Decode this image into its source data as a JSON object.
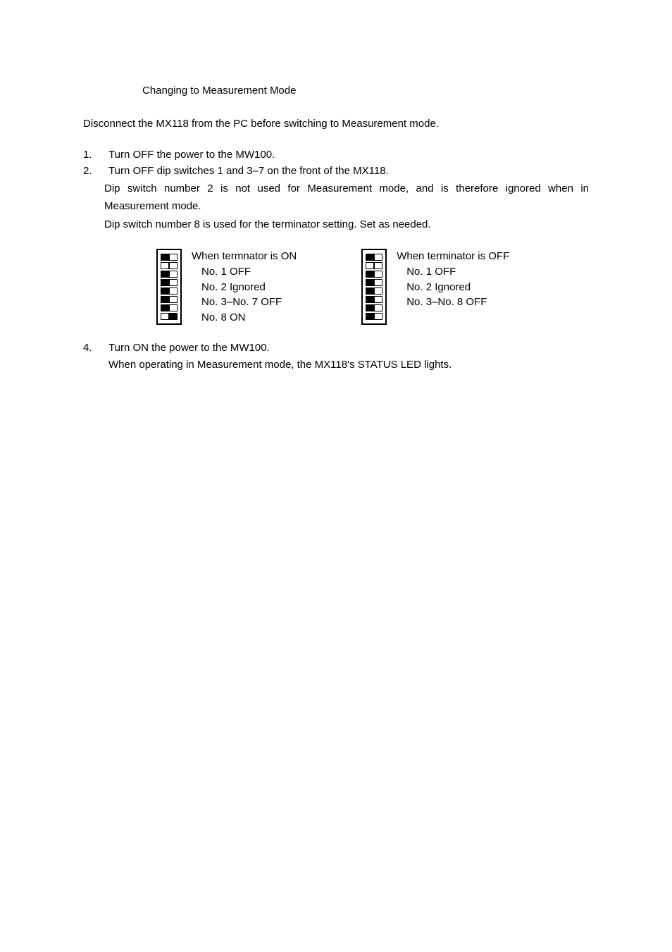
{
  "heading": "Changing to Measurement Mode",
  "intro": "Disconnect the MX118 from the PC before switching to Measurement mode.",
  "steps": {
    "s1_num": "1.",
    "s1": "Turn OFF the power to the MW100.",
    "s2_num": "2.",
    "s2": "Turn OFF dip switches 1 and 3–7 on the front of the MX118.",
    "s2_sub1": "Dip switch number 2 is not used for Measurement mode, and is therefore ignored when in Measurement mode.",
    "s2_sub2": "Dip switch number 8 is used for the terminator setting. Set as needed.",
    "s4_num": "4.",
    "s4": "Turn ON the power to the MW100.",
    "s4_sub": "When operating in Measurement mode, the MX118's STATUS LED lights."
  },
  "diagram_on": {
    "title": "When termnator is ON",
    "l1": "No. 1   OFF",
    "l2": "No. 2   Ignored",
    "l3": "No. 3–No. 7   OFF",
    "l4": "No. 8    ON",
    "switches": [
      {
        "left": "filled",
        "right": "empty"
      },
      {
        "left": "empty",
        "right": "empty"
      },
      {
        "left": "filled",
        "right": "empty"
      },
      {
        "left": "filled",
        "right": "empty"
      },
      {
        "left": "filled",
        "right": "empty"
      },
      {
        "left": "filled",
        "right": "empty"
      },
      {
        "left": "filled",
        "right": "empty"
      },
      {
        "left": "empty",
        "right": "filled"
      }
    ]
  },
  "diagram_off": {
    "title": "When terminator is OFF",
    "l1": "No. 1   OFF",
    "l2": "No. 2   Ignored",
    "l3": "No. 3–No. 8   OFF",
    "switches": [
      {
        "left": "filled",
        "right": "empty"
      },
      {
        "left": "empty",
        "right": "empty"
      },
      {
        "left": "filled",
        "right": "empty"
      },
      {
        "left": "filled",
        "right": "empty"
      },
      {
        "left": "filled",
        "right": "empty"
      },
      {
        "left": "filled",
        "right": "empty"
      },
      {
        "left": "filled",
        "right": "empty"
      },
      {
        "left": "filled",
        "right": "empty"
      }
    ]
  }
}
